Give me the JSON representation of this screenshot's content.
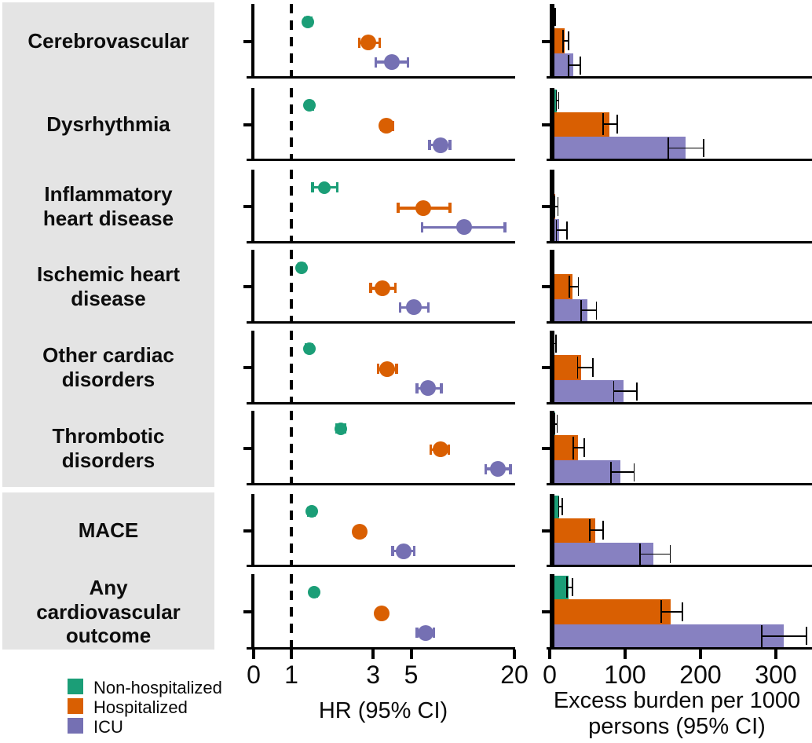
{
  "figure": {
    "row_labels": [
      "Cerebrovascular",
      "Dysrhythmia",
      "Inflammatory\nheart disease",
      "Ischemic heart\ndisease",
      "Other cardiac\ndisorders",
      "Thrombotic\ndisorders",
      "MACE",
      "Any\ncardiovascular\noutcome"
    ]
  },
  "axes": {
    "hr_title": "HR (95% CI)",
    "burden_title_line1": "Excess burden per 1000",
    "burden_title_line2": "persons (95% CI)"
  },
  "legend": {
    "items": [
      {
        "label": "Non-hospitalized",
        "color": "#1b9e77"
      },
      {
        "label": "Hospitalized",
        "color": "#d95f02"
      },
      {
        "label": "ICU",
        "color": "#7570b3"
      }
    ]
  },
  "colors": {
    "label_bg": "#e4e4e4",
    "axis": "#000000",
    "non_hospitalized": "#1b9e77",
    "hospitalized": "#d95f02",
    "icu": "#7570b3",
    "icu_bar": "#8781c1"
  },
  "chart_data": [
    {
      "type": "scatter",
      "subtype": "forest-plot",
      "title": "",
      "xlabel": "HR (95% CI)",
      "x_scale": "log (broken at zero)",
      "x_ticks": [
        0,
        1,
        3,
        5,
        20
      ],
      "reference_line_x": 1,
      "grid": false,
      "categories": [
        "Cerebrovascular",
        "Dysrhythmia",
        "Inflammatory heart disease",
        "Ischemic heart disease",
        "Other cardiac disorders",
        "Thrombotic disorders",
        "MACE",
        "Any cardiovascular outcome"
      ],
      "series": [
        {
          "name": "Non-hospitalized",
          "color": "#1b9e77",
          "hr": [
            1.25,
            1.28,
            1.55,
            1.15,
            1.27,
            1.94,
            1.31,
            1.36
          ],
          "ci_low": [
            1.2,
            1.24,
            1.33,
            1.11,
            1.22,
            1.84,
            1.26,
            1.32
          ],
          "ci_high": [
            1.3,
            1.33,
            1.85,
            1.19,
            1.32,
            2.05,
            1.36,
            1.41
          ]
        },
        {
          "name": "Hospitalized",
          "color": "#d95f02",
          "hr": [
            2.82,
            3.6,
            5.9,
            3.4,
            3.62,
            7.4,
            2.5,
            3.35
          ],
          "ci_low": [
            2.49,
            3.35,
            4.2,
            2.9,
            3.2,
            6.5,
            2.35,
            3.2
          ],
          "ci_high": [
            3.27,
            3.9,
            8.4,
            4.05,
            4.1,
            8.3,
            2.66,
            3.55
          ]
        },
        {
          "name": "ICU",
          "color": "#7570b3",
          "hr": [
            3.85,
            7.4,
            10.2,
            5.2,
            6.3,
            16.0,
            4.5,
            6.05
          ],
          "ci_low": [
            3.1,
            6.4,
            5.8,
            4.3,
            5.4,
            13.6,
            3.9,
            5.4
          ],
          "ci_high": [
            4.8,
            8.4,
            17.6,
            6.3,
            7.5,
            19.0,
            5.2,
            6.8
          ]
        }
      ]
    },
    {
      "type": "bar",
      "subtype": "horizontal-grouped-with-error-bars",
      "title": "",
      "xlabel": "Excess burden per 1000 persons (95% CI)",
      "x_ticks": [
        0,
        100,
        200,
        300
      ],
      "xlim": [
        0,
        348
      ],
      "grid": false,
      "categories": [
        "Cerebrovascular",
        "Dysrhythmia",
        "Inflammatory heart disease",
        "Ischemic heart disease",
        "Other cardiac disorders",
        "Thrombotic disorders",
        "MACE",
        "Any cardiovascular outcome"
      ],
      "series": [
        {
          "name": "Non-hospitalized",
          "color": "#1b9e77",
          "values": [
            4,
            9,
            1.5,
            2,
            5,
            7,
            13,
            25
          ],
          "ci_low": [
            2,
            8,
            0.5,
            1,
            4,
            5,
            11,
            22
          ],
          "ci_high": [
            6,
            11,
            3,
            4,
            7,
            9,
            16,
            29
          ]
        },
        {
          "name": "Hospitalized",
          "color": "#d95f02",
          "values": [
            20,
            79,
            7,
            30,
            42,
            37,
            60,
            160
          ],
          "ci_low": [
            17,
            70,
            5,
            25,
            36,
            30,
            52,
            147
          ],
          "ci_high": [
            24,
            89,
            10,
            37,
            56,
            45,
            70,
            175
          ]
        },
        {
          "name": "ICU",
          "color": "#8781c1",
          "values": [
            31,
            180,
            13,
            50,
            98,
            94,
            138,
            310
          ],
          "ci_low": [
            24,
            156,
            8,
            41,
            84,
            80,
            119,
            280
          ],
          "ci_high": [
            40,
            203,
            22,
            61,
            115,
            111,
            159,
            340
          ]
        }
      ]
    }
  ]
}
